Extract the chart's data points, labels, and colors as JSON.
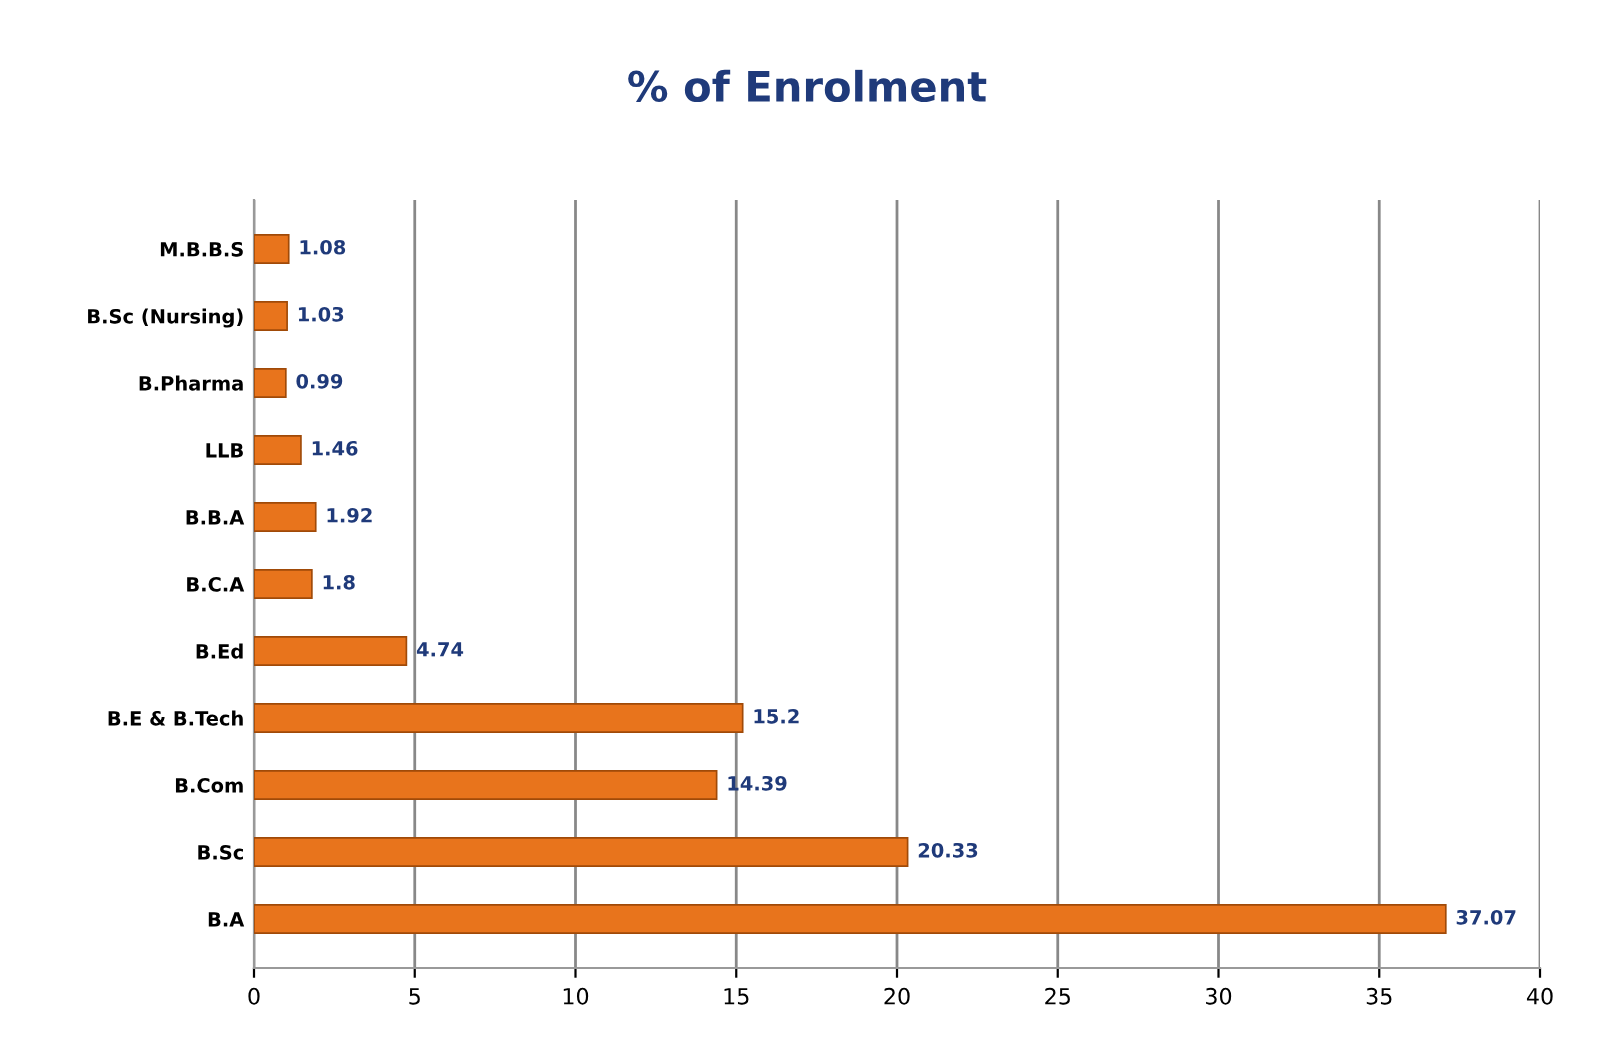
{
  "chart_data": {
    "type": "bar",
    "orientation": "horizontal",
    "title": "% of Enrolment",
    "categories": [
      "M.B.B.S",
      "B.Sc (Nursing)",
      "B.Pharma",
      "LLB",
      "B.B.A",
      "B.C.A",
      "B.Ed",
      "B.E & B.Tech",
      "B.Com",
      "B.Sc",
      "B.A"
    ],
    "values": [
      1.08,
      1.03,
      0.99,
      1.46,
      1.92,
      1.8,
      4.74,
      15.2,
      14.39,
      20.33,
      37.07
    ],
    "color": "#e8741c",
    "xlim": [
      0,
      40
    ],
    "xticks": [
      0,
      5,
      10,
      15,
      20,
      25,
      30,
      35,
      40
    ],
    "grid": "x",
    "data_labels": true
  }
}
